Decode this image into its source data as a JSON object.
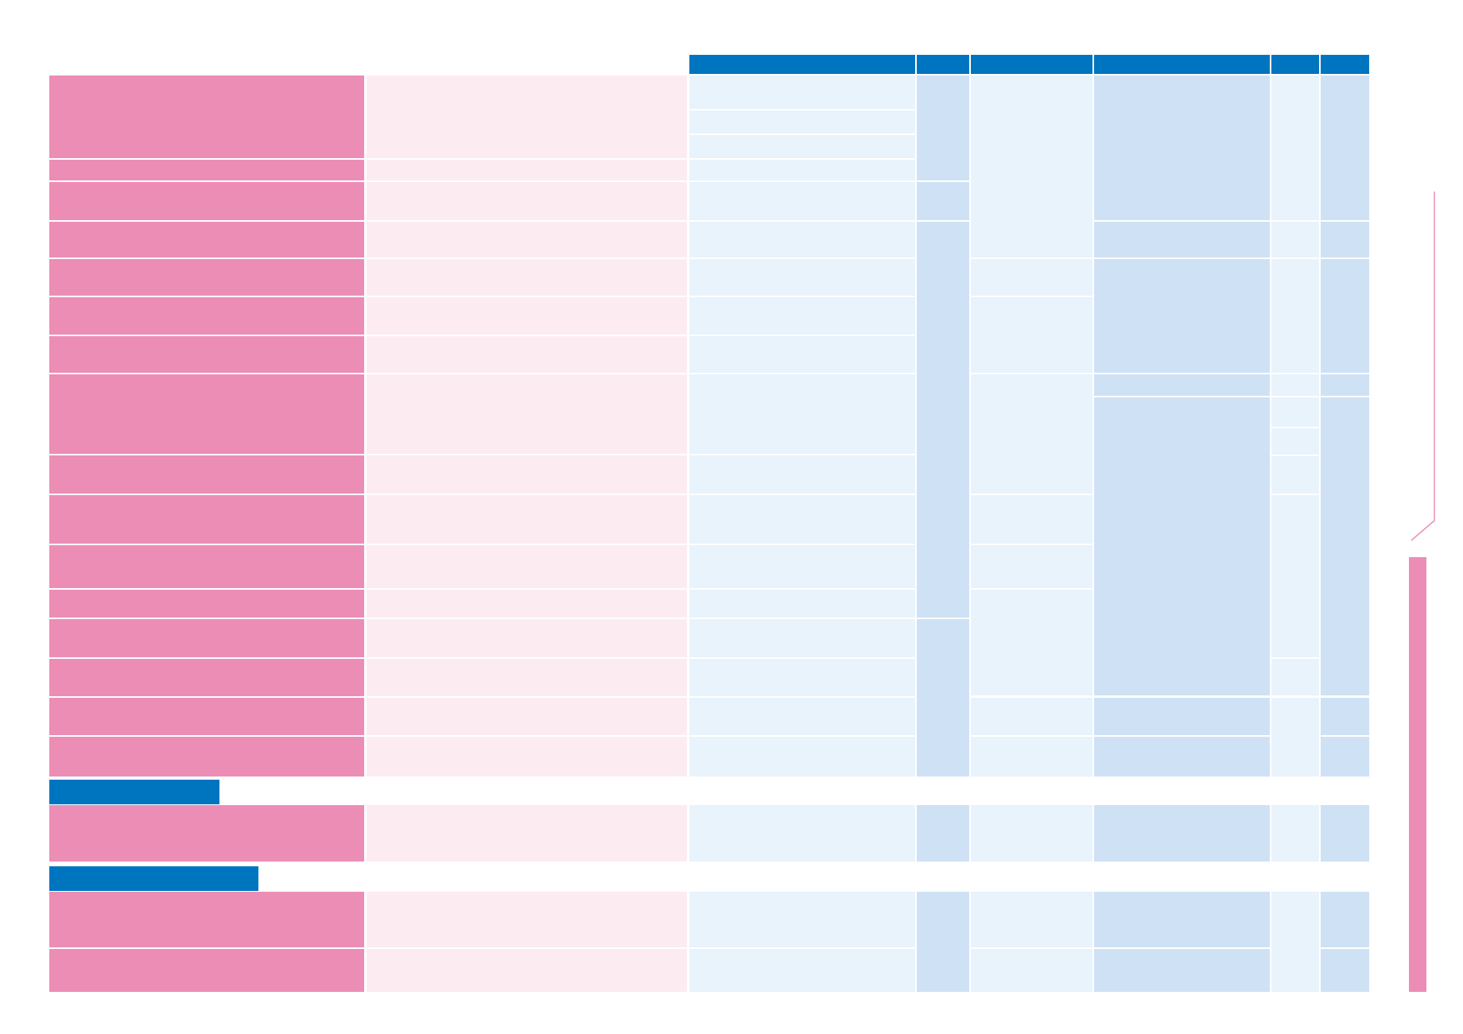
{
  "table": {
    "header_labels": [
      "",
      "",
      "",
      "",
      "",
      ""
    ],
    "rows": [],
    "sections": []
  },
  "colors": {
    "header_blue": "#0075bf",
    "row_label_pink": "#ec8db6",
    "row_desc_pink": "#fcecf2",
    "cell_light_blue": "#e8f3fc",
    "cell_mid_blue": "#cfe1f4"
  }
}
